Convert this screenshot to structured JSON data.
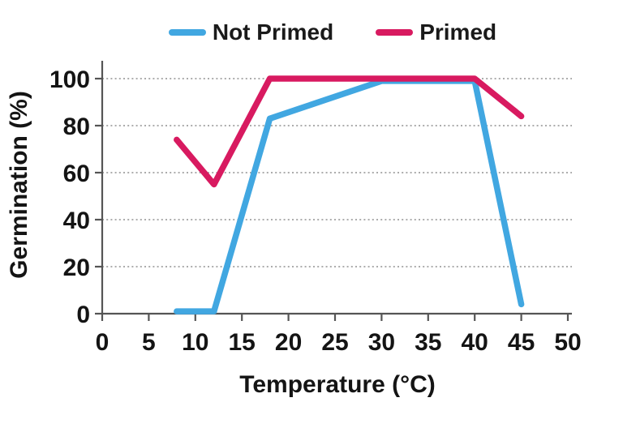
{
  "chart_data": {
    "type": "line",
    "title": "",
    "xlabel": "Temperature (°C)",
    "ylabel": "Germination (%)",
    "xlim": [
      0,
      50
    ],
    "ylim": [
      0,
      100
    ],
    "xticks": [
      0,
      5,
      10,
      15,
      20,
      25,
      30,
      35,
      40,
      45,
      50
    ],
    "yticks": [
      0,
      20,
      40,
      60,
      80,
      100
    ],
    "grid": "horizontal-dashed",
    "legend_position": "top-center",
    "series": [
      {
        "name": "Not Primed",
        "color": "#41A7E1",
        "points": [
          [
            8,
            1
          ],
          [
            12,
            1
          ],
          [
            18,
            83
          ],
          [
            30,
            99
          ],
          [
            40,
            99
          ],
          [
            45,
            4
          ]
        ]
      },
      {
        "name": "Primed",
        "color": "#D81A60",
        "points": [
          [
            8,
            74
          ],
          [
            12,
            55
          ],
          [
            18,
            100
          ],
          [
            30,
            100
          ],
          [
            40,
            100
          ],
          [
            45,
            84
          ]
        ]
      }
    ]
  },
  "styles": {
    "axis_color": "#555555",
    "grid_color": "#909090",
    "text_color": "#141414",
    "background": "#ffffff"
  }
}
